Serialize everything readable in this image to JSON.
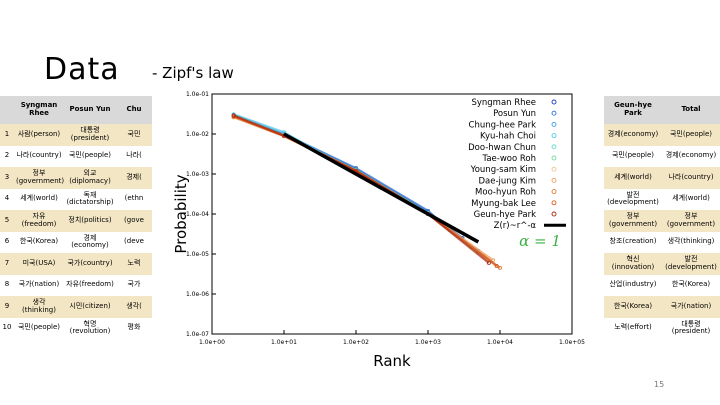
{
  "slide": {
    "title": "Data",
    "subtitle": "- Zipf's law",
    "page_number": "15"
  },
  "left_table": {
    "headers": [
      "",
      "Syngman Rhee",
      "Posun Yun",
      "Chu"
    ],
    "rows": [
      [
        "1",
        "사람(person)",
        "대통령 (president)",
        "국민"
      ],
      [
        "2",
        "나라(country)",
        "국민(people)",
        "나라("
      ],
      [
        "3",
        "정부 (government)",
        "외교 (diplomacy)",
        "경제("
      ],
      [
        "4",
        "세계(world)",
        "독재 (dictatorship)",
        "(ethn"
      ],
      [
        "5",
        "자유(freedom)",
        "정치(politics)",
        "(gove"
      ],
      [
        "6",
        "한국(Korea)",
        "경제(economy)",
        "(deve"
      ],
      [
        "7",
        "미국(USA)",
        "국가(country)",
        "노력"
      ],
      [
        "8",
        "국가(nation)",
        "자유(freedom)",
        "국가"
      ],
      [
        "9",
        "생각(thinking)",
        "시민(citizen)",
        "생각("
      ],
      [
        "10",
        "국민(people)",
        "혁명 (revolution)",
        "평화"
      ]
    ]
  },
  "right_table": {
    "headers": [
      "Geun-hye Park",
      "Total"
    ],
    "rows": [
      [
        "경제(economy)",
        "국민(people)"
      ],
      [
        "국민(people)",
        "경제(economy)"
      ],
      [
        "세계(world)",
        "나라(country)"
      ],
      [
        "발전 (development)",
        "세계(world)"
      ],
      [
        "정부 (government)",
        "정부 (government)"
      ],
      [
        "창조(creation)",
        "생각(thinking)"
      ],
      [
        "혁신 (innovation)",
        "발전 (development)"
      ],
      [
        "산업(industry)",
        "한국(Korea)"
      ],
      [
        "한국(Korea)",
        "국가(nation)"
      ],
      [
        "노력(effort)",
        "대통령 (president)"
      ]
    ]
  },
  "chart_data": {
    "type": "scatter",
    "xlabel": "Rank",
    "ylabel": "Probability",
    "x_scale": "log",
    "y_scale": "log",
    "xlim": [
      1,
      100000
    ],
    "ylim": [
      1e-07,
      0.1
    ],
    "x_ticks": [
      "1.0e+00",
      "1.0e+01",
      "1.0e+02",
      "1.0e+03",
      "1.0e+04",
      "1.0e+05"
    ],
    "y_ticks": [
      "1.0e-01",
      "1.0e-02",
      "1.0e-03",
      "1.0e-04",
      "1.0e-05",
      "1.0e-06",
      "1.0e-07"
    ],
    "legend_position": "top-right",
    "annotation": "α = 1",
    "annotation_color": "#3cb043",
    "series": [
      {
        "name": "Syngman Rhee",
        "color": "#1f3fbf",
        "points": [
          [
            2,
            0.028
          ],
          [
            10,
            0.0095
          ],
          [
            100,
            0.0013
          ],
          [
            1000,
            0.00011
          ],
          [
            3000,
            2.5e-05
          ]
        ]
      },
      {
        "name": "Posun Yun",
        "color": "#2a6fd0",
        "points": [
          [
            2,
            0.03
          ],
          [
            10,
            0.01
          ],
          [
            100,
            0.0014
          ],
          [
            1000,
            0.00012
          ],
          [
            2000,
            4e-05
          ]
        ]
      },
      {
        "name": "Chung-hee Park",
        "color": "#3fa0e0",
        "points": [
          [
            2,
            0.029
          ],
          [
            10,
            0.0092
          ],
          [
            100,
            0.0011
          ],
          [
            1000,
            0.0001
          ],
          [
            5000,
            1.2e-05
          ]
        ]
      },
      {
        "name": "Kyu-hah Choi",
        "color": "#55c8e8",
        "points": [
          [
            2,
            0.031
          ],
          [
            10,
            0.011
          ],
          [
            60,
            0.0018
          ],
          [
            300,
            0.00035
          ],
          [
            1000,
            0.0001
          ]
        ]
      },
      {
        "name": "Doo-hwan Chun",
        "color": "#66d6c8",
        "points": [
          [
            2,
            0.027
          ],
          [
            10,
            0.009
          ],
          [
            100,
            0.0012
          ],
          [
            1000,
            0.0001
          ],
          [
            5000,
            1.1e-05
          ]
        ]
      },
      {
        "name": "Tae-woo Roh",
        "color": "#7fd9a0",
        "points": [
          [
            2,
            0.028
          ],
          [
            10,
            0.0093
          ],
          [
            100,
            0.00125
          ],
          [
            1000,
            0.000105
          ],
          [
            4000,
            1.5e-05
          ]
        ]
      },
      {
        "name": "Young-sam Kim",
        "color": "#f0c48a",
        "points": [
          [
            2,
            0.027
          ],
          [
            10,
            0.009
          ],
          [
            100,
            0.0012
          ],
          [
            1000,
            0.0001
          ],
          [
            6000,
            9e-06
          ]
        ]
      },
      {
        "name": "Dae-jung Kim",
        "color": "#f0a060",
        "points": [
          [
            2,
            0.026
          ],
          [
            10,
            0.0088
          ],
          [
            100,
            0.00118
          ],
          [
            1000,
            0.0001
          ],
          [
            8000,
            7e-06
          ]
        ]
      },
      {
        "name": "Moo-hyun Roh",
        "color": "#e07a3a",
        "points": [
          [
            2,
            0.027
          ],
          [
            10,
            0.0089
          ],
          [
            100,
            0.00118
          ],
          [
            1000,
            0.0001
          ],
          [
            10000,
            4.5e-06
          ]
        ]
      },
      {
        "name": "Myung-bak Lee",
        "color": "#d05a20",
        "points": [
          [
            2,
            0.028
          ],
          [
            10,
            0.009
          ],
          [
            100,
            0.0012
          ],
          [
            1000,
            0.0001
          ],
          [
            9000,
            5e-06
          ]
        ]
      },
      {
        "name": "Geun-hye Park",
        "color": "#b02a10",
        "points": [
          [
            2,
            0.029
          ],
          [
            10,
            0.0091
          ],
          [
            100,
            0.0012
          ],
          [
            1000,
            0.0001
          ],
          [
            7000,
            6e-06
          ]
        ]
      }
    ],
    "reference_line": {
      "name": "Z(r)~r^-α",
      "color": "#000000",
      "x": [
        10,
        5000
      ],
      "y": [
        0.01,
        2e-05
      ]
    }
  }
}
